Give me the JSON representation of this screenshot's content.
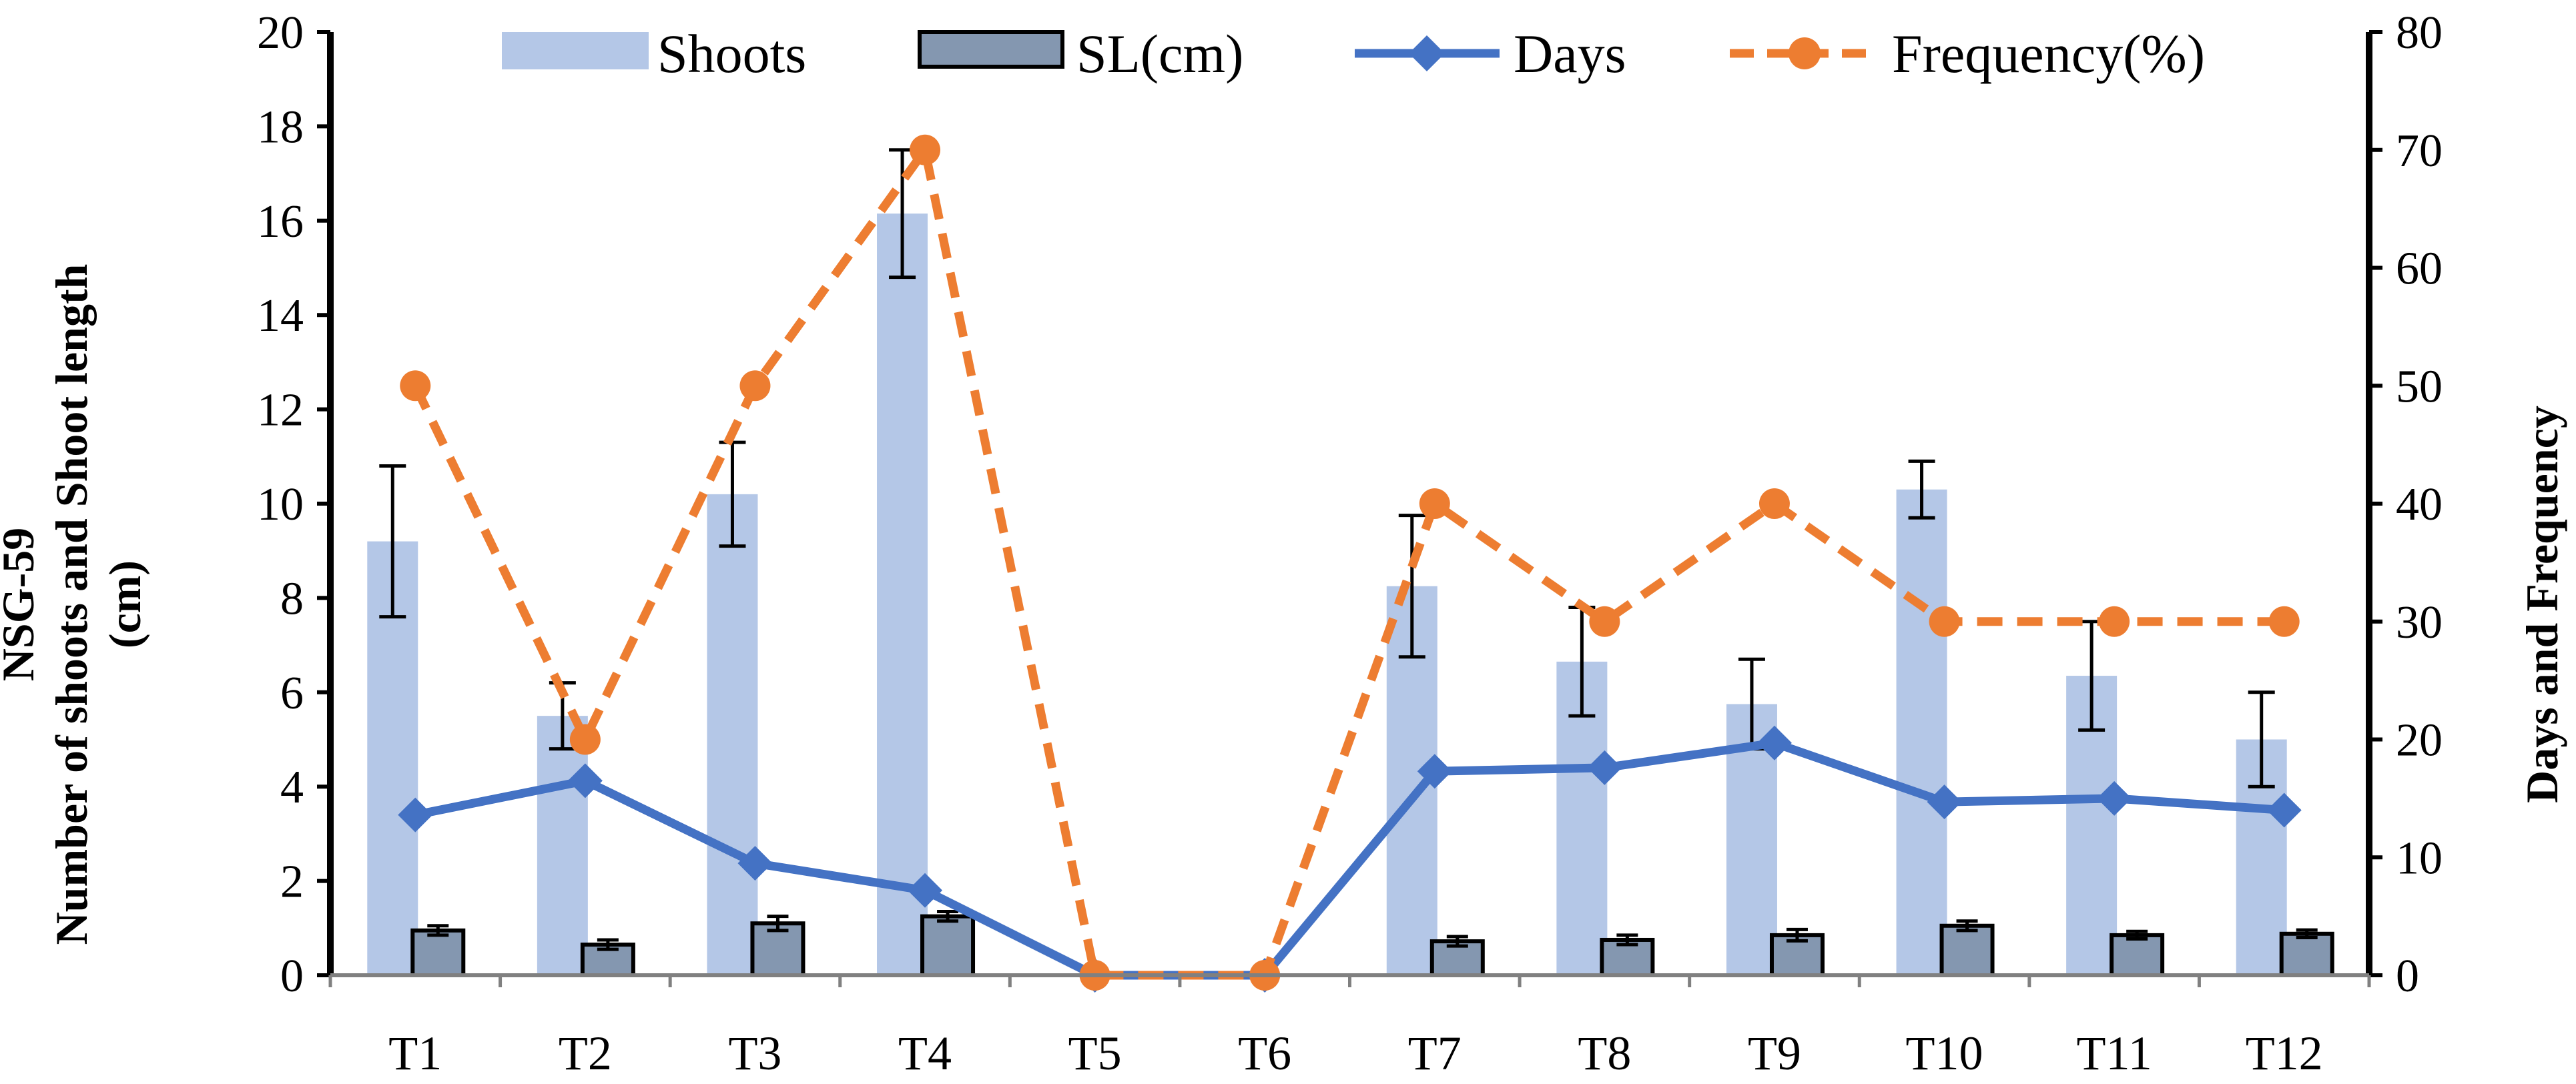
{
  "chart_data": {
    "type": "bar",
    "categories": [
      "T1",
      "T2",
      "T3",
      "T4",
      "T5",
      "T6",
      "T7",
      "T8",
      "T9",
      "T10",
      "T11",
      "T12"
    ],
    "left_axis": {
      "title_line1": "NSG-59",
      "title_line2": "Number of shoots and Shoot length",
      "title_line3": "(cm)",
      "min": 0,
      "max": 20,
      "step": 2
    },
    "right_axis": {
      "title": "Days and Frequency",
      "min": 0,
      "max": 80,
      "step": 10
    },
    "series": [
      {
        "name": "Shoots",
        "kind": "bar",
        "axis": "left",
        "color": "#b4c7e7",
        "values": [
          9.2,
          5.5,
          10.2,
          16.15,
          0,
          0,
          8.25,
          6.65,
          5.75,
          10.3,
          6.35,
          5.0
        ],
        "errors": [
          1.6,
          0.7,
          1.1,
          1.35,
          0,
          0,
          1.5,
          1.15,
          0.95,
          0.6,
          1.15,
          1.0
        ]
      },
      {
        "name": "SL(cm)",
        "kind": "bar",
        "axis": "left",
        "color": "#8497b0",
        "values": [
          0.95,
          0.65,
          1.1,
          1.25,
          0,
          0,
          0.72,
          0.75,
          0.85,
          1.05,
          0.85,
          0.88
        ],
        "errors": [
          0.1,
          0.1,
          0.15,
          0.1,
          0,
          0,
          0.1,
          0.1,
          0.12,
          0.1,
          0.08,
          0.08
        ]
      },
      {
        "name": "Days",
        "kind": "line",
        "axis": "right",
        "color": "#4472c4",
        "marker": "diamond",
        "dashed": false,
        "values": [
          13.6,
          16.5,
          9.5,
          7.2,
          0,
          0,
          17.3,
          17.6,
          19.7,
          14.7,
          15.0,
          14.0
        ]
      },
      {
        "name": "Frequency(%)",
        "kind": "line",
        "axis": "right",
        "color": "#ed7d31",
        "marker": "circle",
        "dashed": true,
        "values": [
          50,
          20,
          50,
          70,
          0,
          0,
          40,
          30,
          40,
          30,
          30,
          30
        ]
      }
    ],
    "legend_position": "top"
  }
}
